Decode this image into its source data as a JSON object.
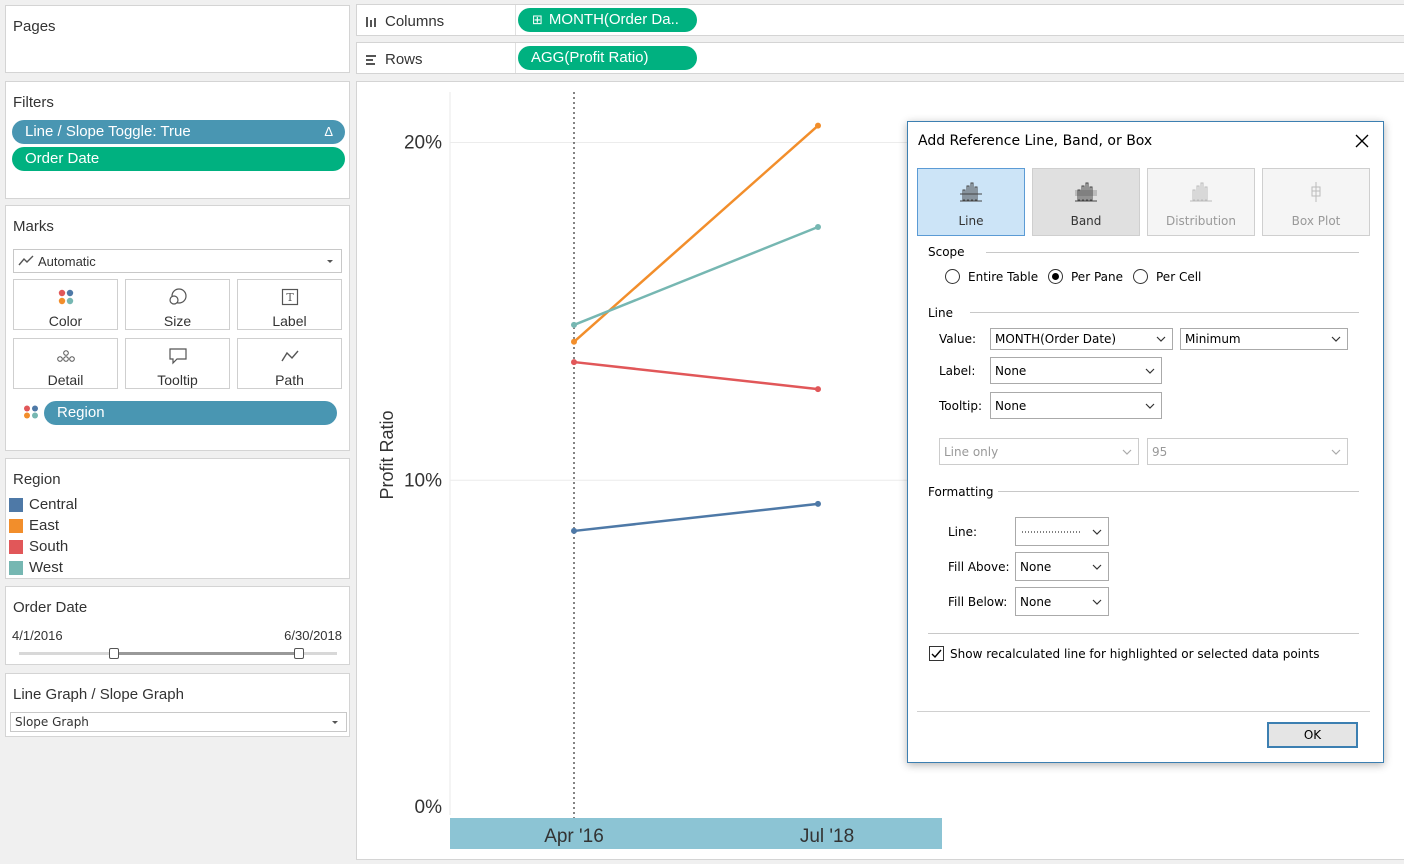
{
  "pages": {
    "title": "Pages"
  },
  "filters": {
    "title": "Filters",
    "items": [
      "Line / Slope Toggle: True",
      "Order Date"
    ],
    "delta_symbol": "Δ"
  },
  "marks": {
    "title": "Marks",
    "mark_type": "Automatic",
    "buttons": [
      "Color",
      "Size",
      "Label",
      "Detail",
      "Tooltip",
      "Path"
    ],
    "region_pill": "Region"
  },
  "region_legend": {
    "title": "Region",
    "items": [
      {
        "name": "Central",
        "color": "#4e79a7"
      },
      {
        "name": "East",
        "color": "#f28e2b"
      },
      {
        "name": "South",
        "color": "#e15759"
      },
      {
        "name": "West",
        "color": "#76b7b2"
      }
    ]
  },
  "order_date": {
    "title": "Order Date",
    "start": "4/1/2016",
    "end": "6/30/2018",
    "range_start_frac": 0.3,
    "range_end_frac": 0.88
  },
  "graph_type": {
    "title": "Line Graph / Slope Graph",
    "value": "Slope Graph"
  },
  "shelves": {
    "columns_label": "Columns",
    "columns_pill": "MONTH(Order Da..",
    "rows_label": "Rows",
    "rows_pill": "AGG(Profit Ratio)"
  },
  "chart_data": {
    "type": "line",
    "x": [
      "Apr '16",
      "Jul '18"
    ],
    "series": [
      {
        "name": "Central",
        "color": "#4e79a7",
        "values": [
          8.5,
          9.3
        ]
      },
      {
        "name": "East",
        "color": "#f28e2b",
        "values": [
          14.1,
          20.5
        ]
      },
      {
        "name": "South",
        "color": "#e15759",
        "values": [
          13.5,
          12.7
        ]
      },
      {
        "name": "West",
        "color": "#76b7b2",
        "values": [
          14.6,
          17.5
        ]
      }
    ],
    "ylabel": "Profit Ratio",
    "yticks": [
      "0%",
      "10%",
      "20%"
    ],
    "ylim": [
      0,
      22
    ],
    "reference_line_at": "Apr '16"
  },
  "dialog": {
    "title": "Add Reference Line, Band, or Box",
    "types": [
      "Line",
      "Band",
      "Distribution",
      "Box Plot"
    ],
    "scope_label": "Scope",
    "scope_options": [
      "Entire Table",
      "Per Pane",
      "Per Cell"
    ],
    "scope_selected": "Per Pane",
    "line_section": "Line",
    "value_label": "Value:",
    "value_field": "MONTH(Order Date)",
    "value_agg": "Minimum",
    "label_label": "Label:",
    "label_value": "None",
    "tooltip_label": "Tooltip:",
    "tooltip_value": "None",
    "disabled_select1": "Line only",
    "disabled_select2": "95",
    "formatting_label": "Formatting",
    "fmt_line_label": "Line:",
    "fill_above_label": "Fill Above:",
    "fill_above_value": "None",
    "fill_below_label": "Fill Below:",
    "fill_below_value": "None",
    "checkbox_label": "Show recalculated line for highlighted or selected data points",
    "ok_label": "OK"
  }
}
